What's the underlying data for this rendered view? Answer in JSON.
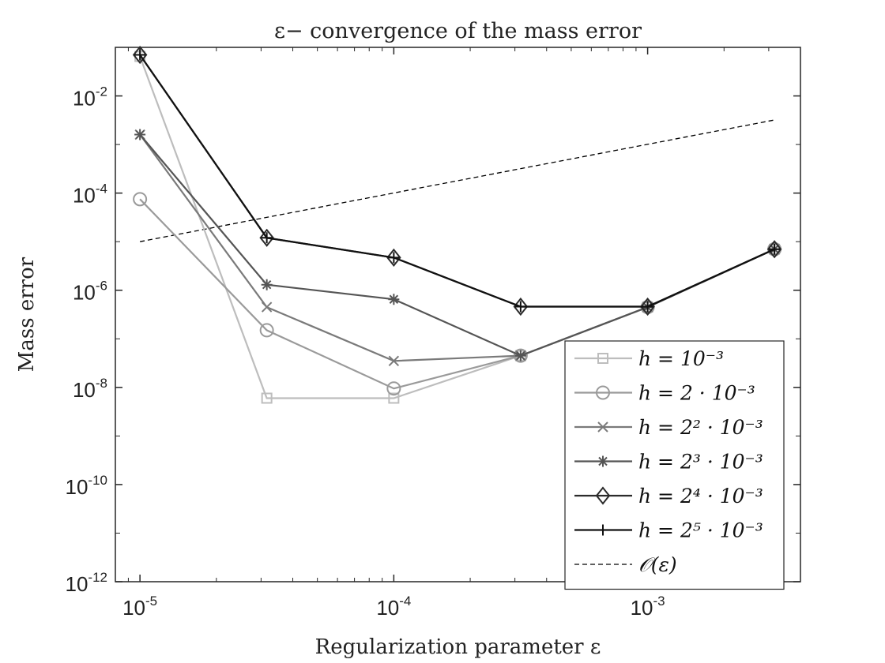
{
  "chart_data": {
    "type": "line",
    "title": "ε− convergence of the mass error",
    "xlabel": "Regularization parameter ε",
    "ylabel": "Mass error",
    "xscale": "log",
    "yscale": "log",
    "xlim": [
      8e-06,
      0.004
    ],
    "ylim": [
      1e-12,
      0.1
    ],
    "x_ticks": [
      {
        "base": "10",
        "exp": "-5",
        "value": 1e-05
      },
      {
        "base": "10",
        "exp": "-4",
        "value": 0.0001
      },
      {
        "base": "10",
        "exp": "-3",
        "value": 0.001
      }
    ],
    "y_ticks": [
      {
        "base": "10",
        "exp": "-2",
        "value": 0.01
      },
      {
        "base": "10",
        "exp": "-4",
        "value": 0.0001
      },
      {
        "base": "10",
        "exp": "-6",
        "value": 1e-06
      },
      {
        "base": "10",
        "exp": "-8",
        "value": 1e-08
      },
      {
        "base": "10",
        "exp": "-10",
        "value": 1e-10
      },
      {
        "base": "10",
        "exp": "-12",
        "value": 1e-12
      }
    ],
    "grid": false,
    "legend_position": "bottom-right",
    "x": [
      1e-05,
      3.16e-05,
      0.0001,
      0.000316,
      0.001,
      0.00316
    ],
    "series": [
      {
        "name": "h = 10⁻³",
        "marker": "square",
        "color": "#bdbdbd",
        "values": [
          0.065,
          6e-09,
          6e-09,
          4.5e-08,
          4.5e-07,
          7e-06
        ]
      },
      {
        "name": "h = 2 · 10⁻³",
        "marker": "circle",
        "color": "#9a9a9a",
        "values": [
          7.5e-05,
          1.5e-07,
          9.5e-09,
          4.5e-08,
          4.5e-07,
          7e-06
        ]
      },
      {
        "name": "h = 2² · 10⁻³",
        "marker": "x",
        "color": "#7a7a7a",
        "values": [
          0.0016,
          4.5e-07,
          3.5e-08,
          4.5e-08,
          4.5e-07,
          7e-06
        ]
      },
      {
        "name": "h = 2³ · 10⁻³",
        "marker": "star",
        "color": "#555555",
        "values": [
          0.0016,
          1.3e-06,
          6.5e-07,
          4.5e-08,
          4.5e-07,
          7e-06
        ]
      },
      {
        "name": "h = 2⁴ · 10⁻³",
        "marker": "diamond",
        "color": "#2b2b2b",
        "values": [
          0.07,
          1.2e-05,
          4.7e-06,
          4.6e-07,
          4.6e-07,
          7e-06
        ]
      },
      {
        "name": "h = 2⁵ · 10⁻³",
        "marker": "plus",
        "color": "#111111",
        "values": [
          0.07,
          1.2e-05,
          4.7e-06,
          4.6e-07,
          4.6e-07,
          7e-06
        ]
      }
    ],
    "reference": {
      "name": "𝒪(ε)",
      "style": "dashed",
      "color": "#000000",
      "x": [
        1e-05,
        0.00316
      ],
      "values": [
        1e-05,
        0.0032
      ]
    }
  }
}
